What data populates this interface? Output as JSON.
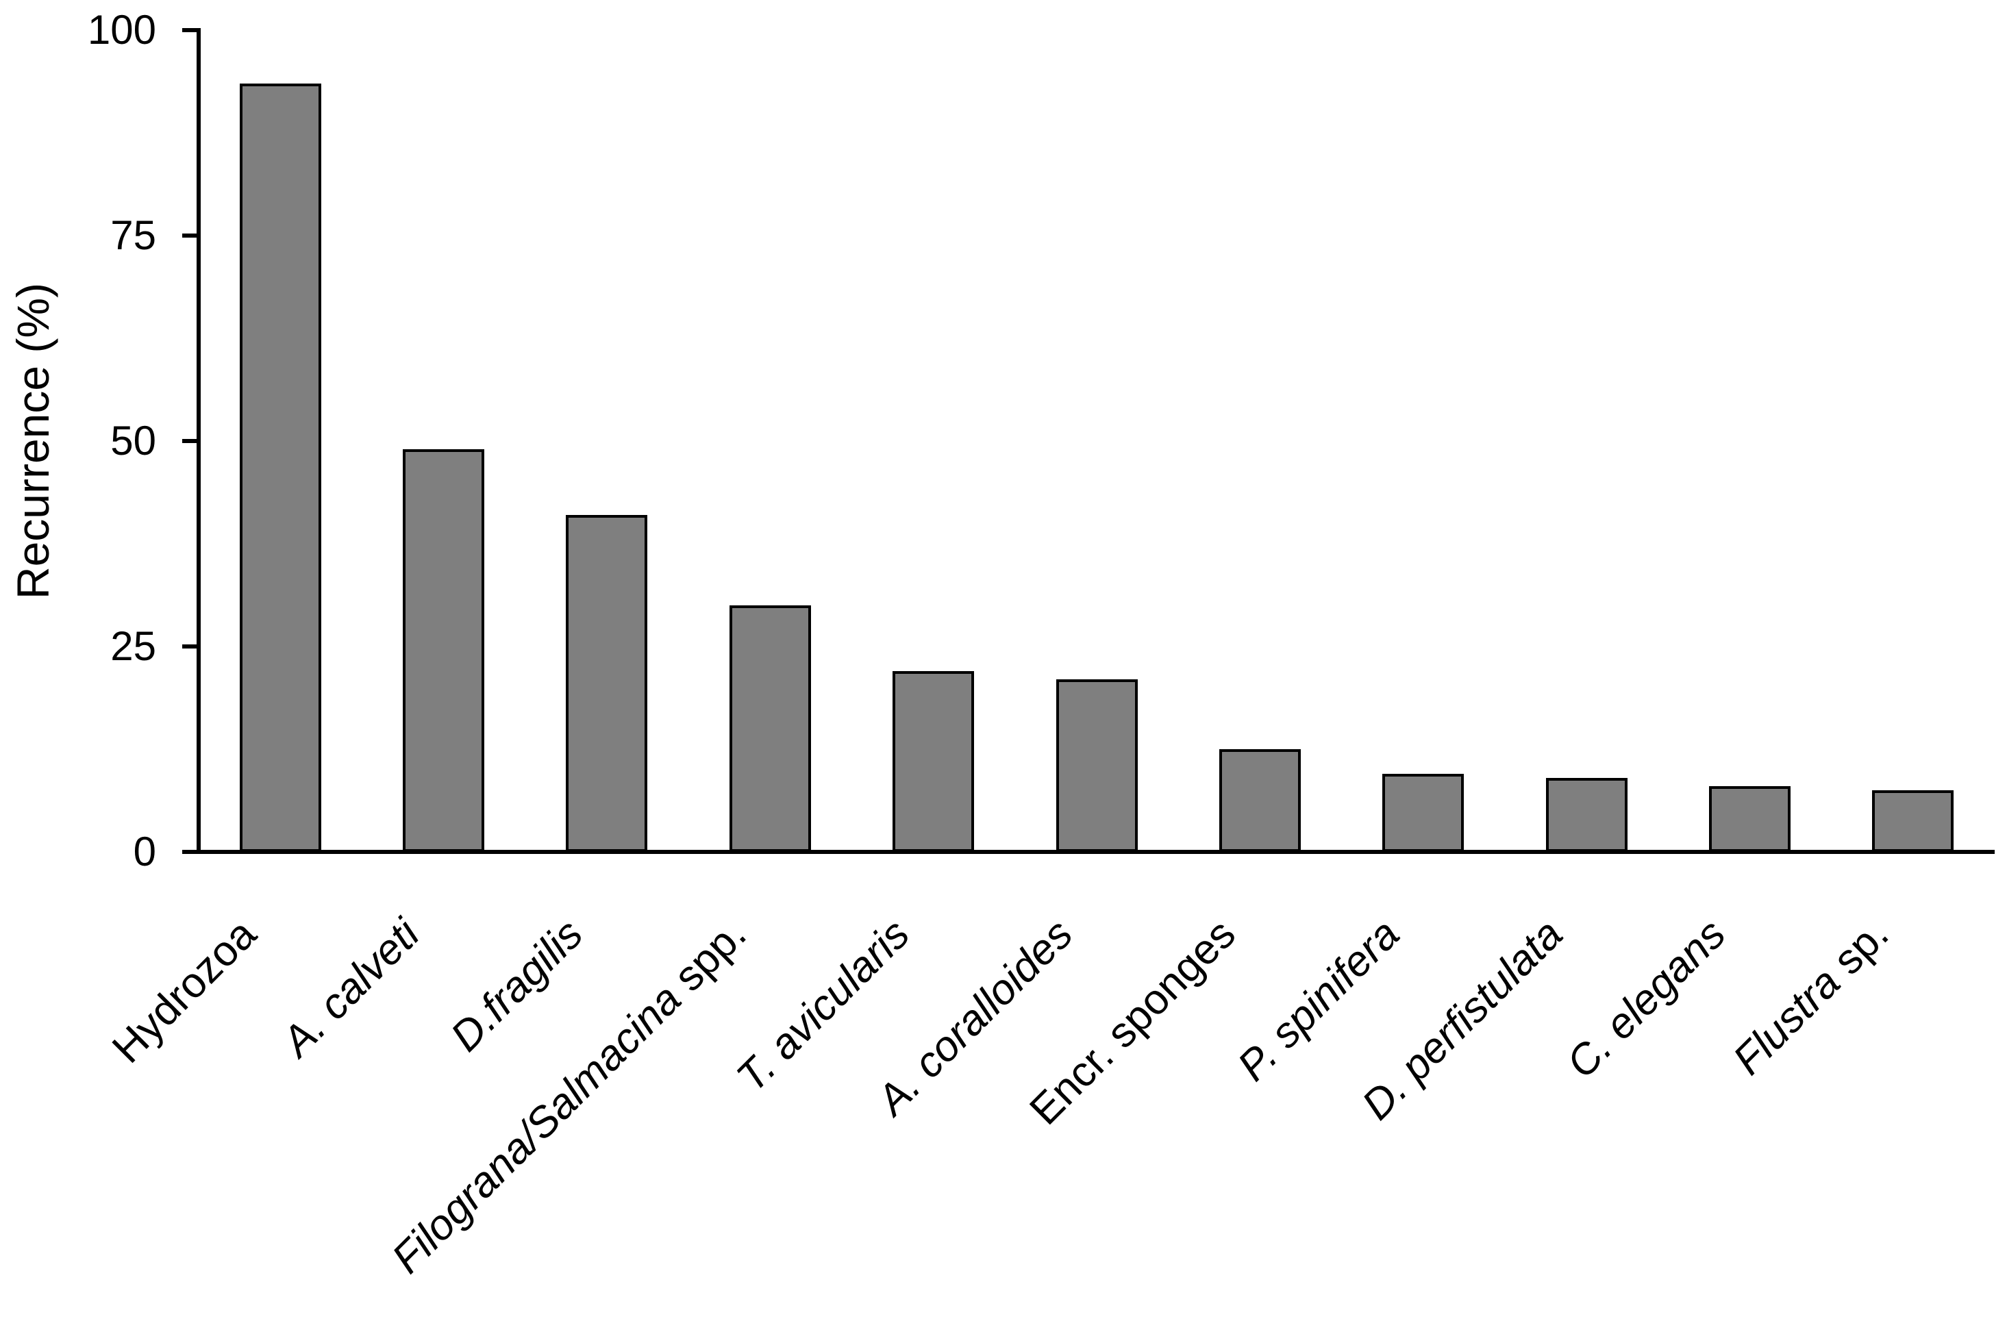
{
  "figure": {
    "background_color": "#ffffff",
    "text_color": "#000000"
  },
  "chart_data": {
    "type": "bar",
    "title": "",
    "xlabel": "",
    "ylabel": "Recurrence (%)",
    "ylim": [
      0,
      100
    ],
    "yticks": [
      0,
      25,
      50,
      75,
      100
    ],
    "grid": false,
    "legend": false,
    "bar_fill_color": "#7f7f7f",
    "bar_border_color": "#000000",
    "axis_color": "#000000",
    "categories": [
      {
        "label": "Hydrozoa",
        "parts": [
          {
            "text": "Hydrozoa",
            "italic": false
          }
        ]
      },
      {
        "label": "A. calveti",
        "parts": [
          {
            "text": "A. calveti",
            "italic": true
          }
        ]
      },
      {
        "label": "D.fragilis",
        "parts": [
          {
            "text": "D.fragilis",
            "italic": true
          }
        ]
      },
      {
        "label": "Filograna/Salmacina spp.",
        "parts": [
          {
            "text": "Filograna/Salmacina",
            "italic": true
          },
          {
            "text": " spp.",
            "italic": false
          }
        ]
      },
      {
        "label": "T. avicularis",
        "parts": [
          {
            "text": "T. avicularis",
            "italic": true
          }
        ]
      },
      {
        "label": "A. coralloides",
        "parts": [
          {
            "text": "A. coralloides",
            "italic": true
          }
        ]
      },
      {
        "label": "Encr. sponges",
        "parts": [
          {
            "text": "Encr. sponges",
            "italic": false
          }
        ]
      },
      {
        "label": "P. spinifera",
        "parts": [
          {
            "text": "P. spinifera",
            "italic": true
          }
        ]
      },
      {
        "label": "D. perfistulata",
        "parts": [
          {
            "text": "D. perfistulata",
            "italic": true
          }
        ]
      },
      {
        "label": "C. elegans",
        "parts": [
          {
            "text": "C. elegans",
            "italic": true
          }
        ]
      },
      {
        "label": "Flustra sp.",
        "parts": [
          {
            "text": "Flustra",
            "italic": true
          },
          {
            "text": " sp.",
            "italic": false
          }
        ]
      }
    ],
    "values": [
      93.5,
      49,
      41,
      30,
      22,
      21,
      12.5,
      9.5,
      9,
      8,
      7.5
    ]
  }
}
